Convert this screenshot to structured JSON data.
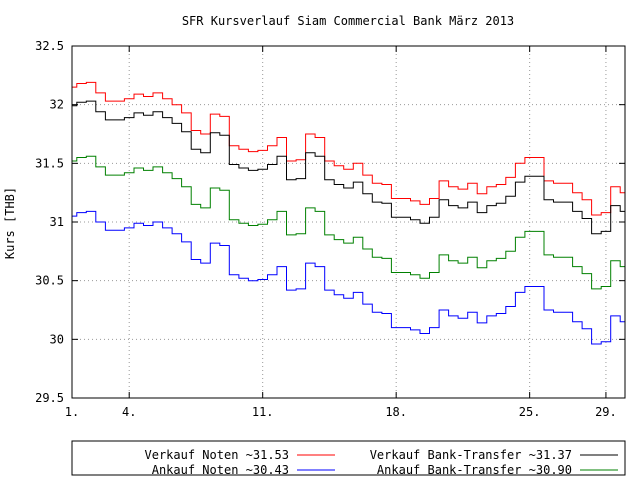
{
  "chart_data": {
    "type": "line",
    "title": "SFR Kursverlauf Siam Commercial Bank März 2013",
    "xlabel": "",
    "ylabel": "Kurs [THB]",
    "xlim": [
      1,
      30
    ],
    "ylim": [
      29.5,
      32.5
    ],
    "x_ticks": [
      1,
      4,
      11,
      18,
      25,
      29
    ],
    "x_tick_labels": [
      "1.",
      "4.",
      "11.",
      "18.",
      "25.",
      "29."
    ],
    "y_ticks": [
      29.5,
      30,
      30.5,
      31,
      31.5,
      32,
      32.5
    ],
    "y_tick_labels": [
      "29.5",
      "30",
      "30.5",
      "31",
      "31.5",
      "32",
      "32.5"
    ],
    "grid": true,
    "legend_position": "bottom",
    "x": [
      1,
      1.5,
      2,
      2.5,
      3,
      3.5,
      4,
      4.5,
      5,
      5.5,
      6,
      6.5,
      7,
      7.5,
      8,
      8.5,
      9,
      9.5,
      10,
      10.5,
      11,
      11.5,
      12,
      12.5,
      13,
      13.5,
      14,
      14.5,
      15,
      15.5,
      16,
      16.5,
      17,
      17.5,
      18,
      18.5,
      19,
      19.5,
      20,
      20.5,
      21,
      21.5,
      22,
      22.5,
      23,
      23.5,
      24,
      24.5,
      25,
      25.5,
      26,
      26.5,
      27,
      27.5,
      28,
      28.5,
      29,
      29.5,
      30
    ],
    "series": [
      {
        "name": "Verkauf Noten ~31.53",
        "color": "#ff0000",
        "values": [
          32.15,
          32.18,
          32.19,
          32.1,
          32.03,
          32.03,
          32.05,
          32.09,
          32.07,
          32.1,
          32.05,
          32.0,
          31.93,
          31.78,
          31.75,
          31.92,
          31.9,
          31.65,
          31.62,
          31.6,
          31.61,
          31.65,
          31.72,
          31.52,
          31.53,
          31.75,
          31.72,
          31.52,
          31.48,
          31.45,
          31.5,
          31.4,
          31.33,
          31.32,
          31.2,
          31.2,
          31.18,
          31.15,
          31.2,
          31.35,
          31.3,
          31.28,
          31.33,
          31.24,
          31.3,
          31.32,
          31.38,
          31.5,
          31.55,
          31.55,
          31.35,
          31.33,
          31.33,
          31.25,
          31.19,
          31.06,
          31.08,
          31.3,
          31.25
        ]
      },
      {
        "name": "Verkauf Bank-Transfer ~31.37",
        "color": "#000000",
        "values": [
          31.99,
          32.02,
          32.03,
          31.94,
          31.87,
          31.87,
          31.89,
          31.93,
          31.91,
          31.94,
          31.89,
          31.84,
          31.77,
          31.62,
          31.59,
          31.76,
          31.74,
          31.49,
          31.46,
          31.44,
          31.45,
          31.49,
          31.56,
          31.36,
          31.37,
          31.59,
          31.56,
          31.36,
          31.32,
          31.29,
          31.34,
          31.24,
          31.17,
          31.16,
          31.04,
          31.04,
          31.02,
          30.99,
          31.04,
          31.19,
          31.14,
          31.12,
          31.17,
          31.08,
          31.14,
          31.16,
          31.22,
          31.34,
          31.39,
          31.39,
          31.19,
          31.17,
          31.17,
          31.09,
          31.03,
          30.9,
          30.92,
          31.14,
          31.09
        ]
      },
      {
        "name": "Ankauf Bank-Transfer ~30.90",
        "color": "#008000",
        "values": [
          31.52,
          31.55,
          31.56,
          31.47,
          31.4,
          31.4,
          31.42,
          31.46,
          31.44,
          31.47,
          31.42,
          31.37,
          31.3,
          31.15,
          31.12,
          31.29,
          31.27,
          31.02,
          30.99,
          30.97,
          30.98,
          31.02,
          31.09,
          30.89,
          30.9,
          31.12,
          31.09,
          30.89,
          30.85,
          30.82,
          30.87,
          30.77,
          30.7,
          30.69,
          30.57,
          30.57,
          30.55,
          30.52,
          30.57,
          30.72,
          30.67,
          30.65,
          30.7,
          30.61,
          30.67,
          30.69,
          30.75,
          30.87,
          30.92,
          30.92,
          30.72,
          30.7,
          30.7,
          30.62,
          30.56,
          30.43,
          30.45,
          30.67,
          30.62
        ]
      },
      {
        "name": "Ankauf Noten ~30.43",
        "color": "#0000ff",
        "values": [
          31.05,
          31.08,
          31.09,
          31.0,
          30.93,
          30.93,
          30.95,
          30.99,
          30.97,
          31.0,
          30.95,
          30.9,
          30.83,
          30.68,
          30.65,
          30.82,
          30.8,
          30.55,
          30.52,
          30.5,
          30.51,
          30.55,
          30.62,
          30.42,
          30.43,
          30.65,
          30.62,
          30.42,
          30.38,
          30.35,
          30.4,
          30.3,
          30.23,
          30.22,
          30.1,
          30.1,
          30.08,
          30.05,
          30.1,
          30.25,
          30.2,
          30.18,
          30.23,
          30.14,
          30.2,
          30.22,
          30.28,
          30.4,
          30.45,
          30.45,
          30.25,
          30.23,
          30.23,
          30.15,
          30.09,
          29.96,
          29.98,
          30.2,
          30.15
        ]
      }
    ],
    "legend": [
      {
        "label": "Verkauf Noten ~31.53",
        "color": "#ff0000"
      },
      {
        "label": "Verkauf Bank-Transfer ~31.37",
        "color": "#000000"
      },
      {
        "label": "Ankauf Noten ~30.43",
        "color": "#0000ff"
      },
      {
        "label": "Ankauf Bank-Transfer ~30.90",
        "color": "#008000"
      }
    ]
  }
}
